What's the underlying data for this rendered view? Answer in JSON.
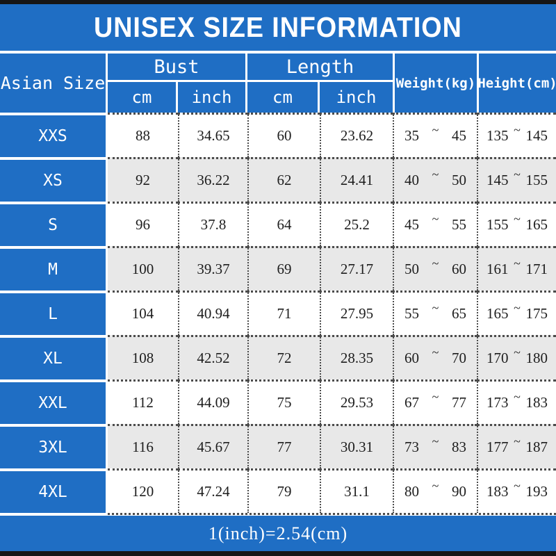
{
  "title": "UNISEX SIZE INFORMATION",
  "colors": {
    "blue": "#1f6ec4",
    "alt_row": "#e8e8e8",
    "bar": "#161616"
  },
  "table": {
    "headers": {
      "size": "Asian Size",
      "bust": "Bust",
      "length": "Length",
      "weight": "Weight(kg)",
      "height": "Height(cm)",
      "cm": "cm",
      "inch": "inch"
    },
    "tilde": "~",
    "rows": [
      {
        "size": "XXS",
        "bust_cm": "88",
        "bust_in": "34.65",
        "len_cm": "60",
        "len_in": "23.62",
        "w_lo": "35",
        "w_hi": "45",
        "h_lo": "135",
        "h_hi": "145"
      },
      {
        "size": "XS",
        "bust_cm": "92",
        "bust_in": "36.22",
        "len_cm": "62",
        "len_in": "24.41",
        "w_lo": "40",
        "w_hi": "50",
        "h_lo": "145",
        "h_hi": "155"
      },
      {
        "size": "S",
        "bust_cm": "96",
        "bust_in": "37.8",
        "len_cm": "64",
        "len_in": "25.2",
        "w_lo": "45",
        "w_hi": "55",
        "h_lo": "155",
        "h_hi": "165"
      },
      {
        "size": "M",
        "bust_cm": "100",
        "bust_in": "39.37",
        "len_cm": "69",
        "len_in": "27.17",
        "w_lo": "50",
        "w_hi": "60",
        "h_lo": "161",
        "h_hi": "171"
      },
      {
        "size": "L",
        "bust_cm": "104",
        "bust_in": "40.94",
        "len_cm": "71",
        "len_in": "27.95",
        "w_lo": "55",
        "w_hi": "65",
        "h_lo": "165",
        "h_hi": "175"
      },
      {
        "size": "XL",
        "bust_cm": "108",
        "bust_in": "42.52",
        "len_cm": "72",
        "len_in": "28.35",
        "w_lo": "60",
        "w_hi": "70",
        "h_lo": "170",
        "h_hi": "180"
      },
      {
        "size": "XXL",
        "bust_cm": "112",
        "bust_in": "44.09",
        "len_cm": "75",
        "len_in": "29.53",
        "w_lo": "67",
        "w_hi": "77",
        "h_lo": "173",
        "h_hi": "183"
      },
      {
        "size": "3XL",
        "bust_cm": "116",
        "bust_in": "45.67",
        "len_cm": "77",
        "len_in": "30.31",
        "w_lo": "73",
        "w_hi": "83",
        "h_lo": "177",
        "h_hi": "187"
      },
      {
        "size": "4XL",
        "bust_cm": "120",
        "bust_in": "47.24",
        "len_cm": "79",
        "len_in": "31.1",
        "w_lo": "80",
        "w_hi": "90",
        "h_lo": "183",
        "h_hi": "193"
      }
    ]
  },
  "footer": {
    "note": "1(inch)=2.54(cm)"
  },
  "chart_data": {
    "type": "table",
    "title": "UNISEX SIZE INFORMATION",
    "columns": [
      "Asian Size",
      "Bust cm",
      "Bust inch",
      "Length cm",
      "Length inch",
      "Weight(kg)",
      "Height(cm)"
    ],
    "rows": [
      [
        "XXS",
        88,
        34.65,
        60,
        23.62,
        "35~45",
        "135~145"
      ],
      [
        "XS",
        92,
        36.22,
        62,
        24.41,
        "40~50",
        "145~155"
      ],
      [
        "S",
        96,
        37.8,
        64,
        25.2,
        "45~55",
        "155~165"
      ],
      [
        "M",
        100,
        39.37,
        69,
        27.17,
        "50~60",
        "161~171"
      ],
      [
        "L",
        104,
        40.94,
        71,
        27.95,
        "55~65",
        "165~175"
      ],
      [
        "XL",
        108,
        42.52,
        72,
        28.35,
        "60~70",
        "170~180"
      ],
      [
        "XXL",
        112,
        44.09,
        75,
        29.53,
        "67~77",
        "173~183"
      ],
      [
        "3XL",
        116,
        45.67,
        77,
        30.31,
        "73~83",
        "177~187"
      ],
      [
        "4XL",
        120,
        47.24,
        79,
        31.1,
        "80~90",
        "183~193"
      ]
    ],
    "note": "1(inch)=2.54(cm)"
  }
}
